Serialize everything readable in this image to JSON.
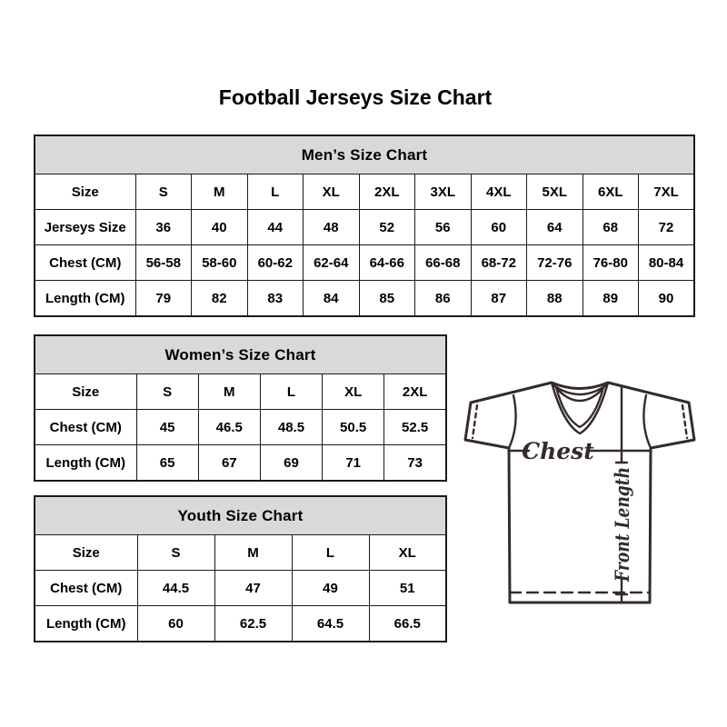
{
  "page": {
    "title": "Football Jerseys Size Chart"
  },
  "colors": {
    "background": "#ffffff",
    "header_bg": "#d9d9d9",
    "table_border": "#1a1a1a",
    "text": "#000000",
    "diagram_stroke": "#342b28"
  },
  "diagram": {
    "chest_label": "Chest",
    "front_length_label": "Front Length"
  },
  "chart_data": [
    {
      "type": "table",
      "title": "Men’s Size Chart",
      "columns": [
        "Size",
        "S",
        "M",
        "L",
        "XL",
        "2XL",
        "3XL",
        "4XL",
        "5XL",
        "6XL",
        "7XL"
      ],
      "rows": [
        [
          "Jerseys Size",
          "36",
          "40",
          "44",
          "48",
          "52",
          "56",
          "60",
          "64",
          "68",
          "72"
        ],
        [
          "Chest (CM)",
          "56-58",
          "58-60",
          "60-62",
          "62-64",
          "64-66",
          "66-68",
          "68-72",
          "72-76",
          "76-80",
          "80-84"
        ],
        [
          "Length (CM)",
          "79",
          "82",
          "83",
          "84",
          "85",
          "86",
          "87",
          "88",
          "89",
          "90"
        ]
      ]
    },
    {
      "type": "table",
      "title": "Women’s Size Chart",
      "columns": [
        "Size",
        "S",
        "M",
        "L",
        "XL",
        "2XL"
      ],
      "rows": [
        [
          "Chest (CM)",
          "45",
          "46.5",
          "48.5",
          "50.5",
          "52.5"
        ],
        [
          "Length (CM)",
          "65",
          "67",
          "69",
          "71",
          "73"
        ]
      ]
    },
    {
      "type": "table",
      "title": "Youth Size Chart",
      "columns": [
        "Size",
        "S",
        "M",
        "L",
        "XL"
      ],
      "rows": [
        [
          "Chest (CM)",
          "44.5",
          "47",
          "49",
          "51"
        ],
        [
          "Length (CM)",
          "60",
          "62.5",
          "64.5",
          "66.5"
        ]
      ]
    }
  ]
}
